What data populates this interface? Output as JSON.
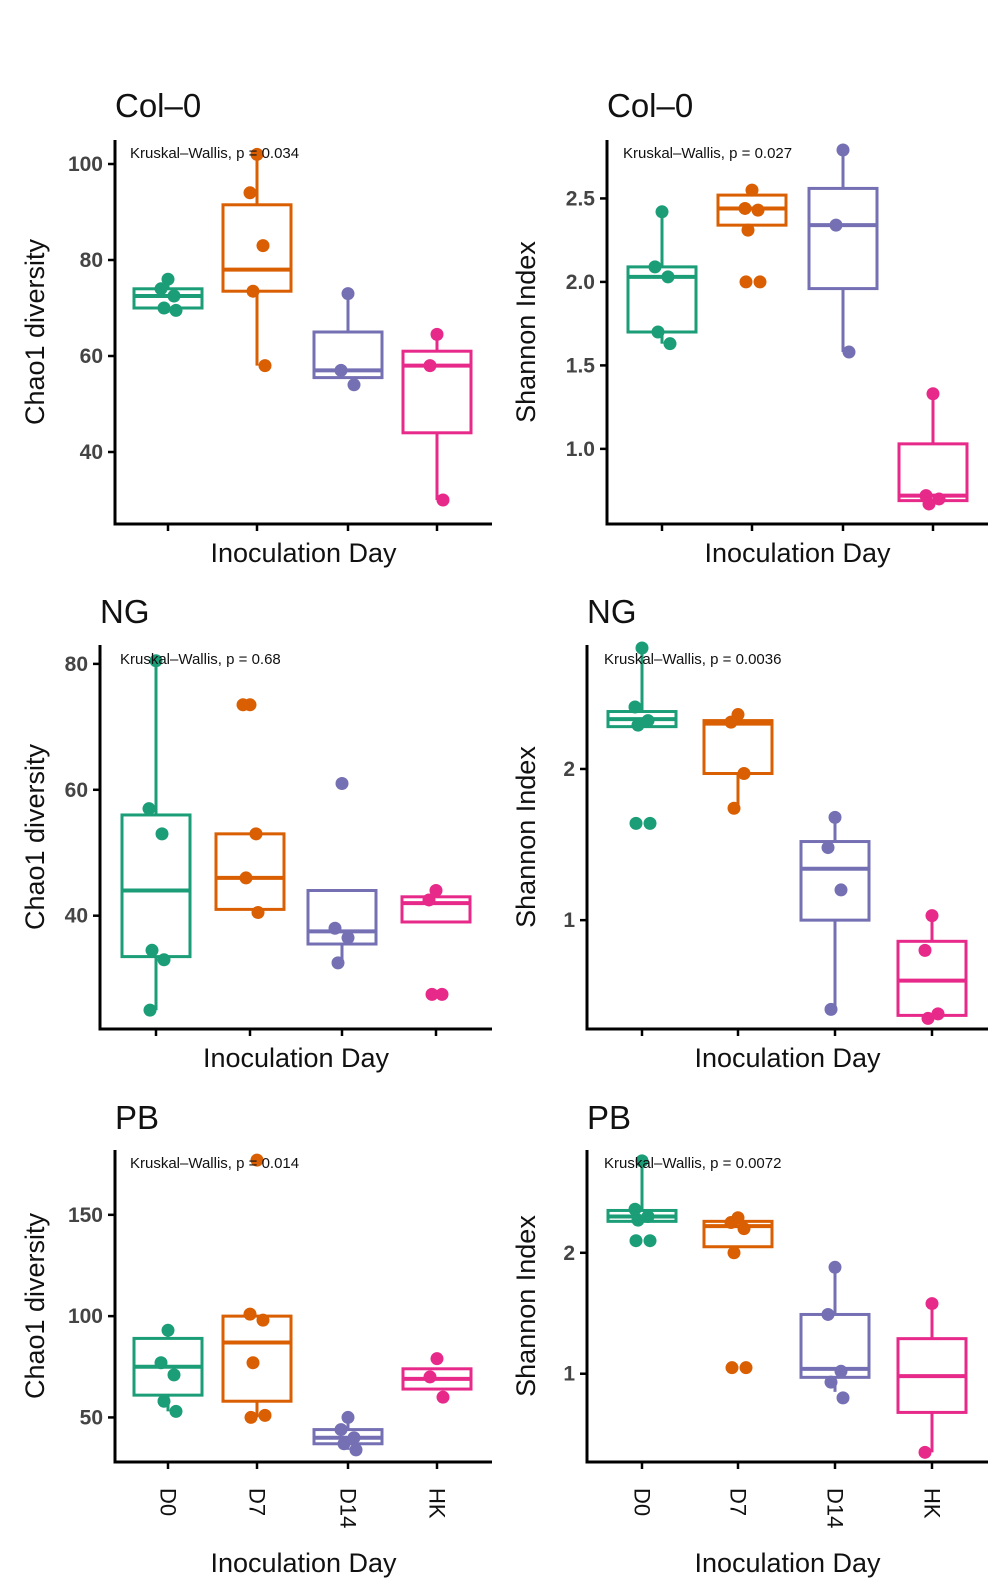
{
  "chart_data": [
    {
      "type": "box",
      "title": "Col–0",
      "xlabel": "Inoculation Day",
      "ylabel": "Chao1 diversity",
      "annotation": "Kruskal–Wallis, p = 0.034",
      "categories": [
        "D0",
        "D7",
        "D14",
        "HK"
      ],
      "show_category_labels": false,
      "ylim": [
        25,
        105
      ],
      "yticks": [
        40,
        60,
        80,
        100
      ],
      "yticklabels": [
        "40",
        "60",
        "80",
        "100"
      ],
      "colors": [
        "#1b9e77",
        "#d95f02",
        "#7570b3",
        "#e7298a"
      ],
      "series": [
        {
          "name": "D0",
          "box": {
            "q1": 70,
            "median": 72.5,
            "q3": 74,
            "min": 69,
            "max": 76
          },
          "points": [
            76,
            74,
            72.5,
            70,
            69.5
          ]
        },
        {
          "name": "D7",
          "box": {
            "q1": 73.5,
            "median": 78,
            "q3": 91.5,
            "min": 58,
            "max": 103
          },
          "points": [
            102,
            94,
            83,
            73.5,
            58
          ]
        },
        {
          "name": "D14",
          "box": {
            "q1": 55.5,
            "median": 57,
            "q3": 65,
            "min": 55.5,
            "max": 73
          },
          "points": [
            73,
            57,
            54
          ]
        },
        {
          "name": "HK",
          "box": {
            "q1": 44,
            "median": 58,
            "q3": 61,
            "min": 30,
            "max": 64.5
          },
          "points": [
            64.5,
            58,
            30
          ]
        }
      ]
    },
    {
      "type": "box",
      "title": "Col–0",
      "xlabel": "Inoculation Day",
      "ylabel": "Shannon Index",
      "annotation": "Kruskal–Wallis, p = 0.027",
      "categories": [
        "D0",
        "D7",
        "D14",
        "HK"
      ],
      "show_category_labels": false,
      "ylim": [
        0.55,
        2.85
      ],
      "yticks": [
        1.0,
        1.5,
        2.0,
        2.5
      ],
      "yticklabels": [
        "1.0",
        "1.5",
        "2.0",
        "2.5"
      ],
      "colors": [
        "#1b9e77",
        "#d95f02",
        "#7570b3",
        "#e7298a"
      ],
      "series": [
        {
          "name": "D0",
          "box": {
            "q1": 1.7,
            "median": 2.03,
            "q3": 2.09,
            "min": 1.63,
            "max": 2.42
          },
          "points": [
            2.42,
            2.09,
            2.03,
            1.7,
            1.63
          ]
        },
        {
          "name": "D7",
          "box": {
            "q1": 2.34,
            "median": 2.44,
            "q3": 2.52,
            "min": 2.34,
            "max": 2.55
          },
          "points": [
            2.55,
            2.44,
            2.43,
            2.31,
            2.0,
            2.0
          ]
        },
        {
          "name": "D14",
          "box": {
            "q1": 1.96,
            "median": 2.34,
            "q3": 2.56,
            "min": 1.58,
            "max": 2.79
          },
          "points": [
            2.79,
            2.34,
            1.58
          ]
        },
        {
          "name": "HK",
          "box": {
            "q1": 0.69,
            "median": 0.72,
            "q3": 1.03,
            "min": 0.69,
            "max": 1.33
          },
          "points": [
            1.33,
            0.72,
            0.7,
            0.67
          ]
        }
      ]
    },
    {
      "type": "box",
      "title": "NG",
      "xlabel": "Inoculation Day",
      "ylabel": "Chao1 diversity",
      "annotation": "Kruskal–Wallis, p = 0.68",
      "categories": [
        "D0",
        "D7",
        "D14",
        "HK"
      ],
      "show_category_labels": false,
      "ylim": [
        22,
        83
      ],
      "yticks": [
        40,
        60,
        80
      ],
      "yticklabels": [
        "40",
        "60",
        "80"
      ],
      "colors": [
        "#1b9e77",
        "#d95f02",
        "#7570b3",
        "#e7298a"
      ],
      "series": [
        {
          "name": "D0",
          "box": {
            "q1": 33.5,
            "median": 44,
            "q3": 56,
            "min": 25,
            "max": 80.5
          },
          "points": [
            80.5,
            57,
            53,
            34.5,
            33,
            25
          ]
        },
        {
          "name": "D7",
          "box": {
            "q1": 41,
            "median": 46,
            "q3": 53,
            "min": 41,
            "max": 53
          },
          "points": [
            73.5,
            73.5,
            53,
            46,
            40.5
          ]
        },
        {
          "name": "D14",
          "box": {
            "q1": 35.5,
            "median": 37.5,
            "q3": 44,
            "min": 32.5,
            "max": 44
          },
          "points": [
            61,
            38,
            36.5,
            32.5
          ]
        },
        {
          "name": "HK",
          "box": {
            "q1": 39,
            "median": 42,
            "q3": 43,
            "min": 39,
            "max": 43
          },
          "points": [
            44,
            42.5,
            27.5,
            27.5
          ]
        }
      ]
    },
    {
      "type": "box",
      "title": "NG",
      "xlabel": "Inoculation Day",
      "ylabel": "Shannon Index",
      "annotation": "Kruskal–Wallis, p = 0.0036",
      "categories": [
        "D0",
        "D7",
        "D14",
        "HK"
      ],
      "show_category_labels": false,
      "ylim": [
        0.28,
        2.82
      ],
      "yticks": [
        1,
        2
      ],
      "yticklabels": [
        "1",
        "2"
      ],
      "colors": [
        "#1b9e77",
        "#d95f02",
        "#7570b3",
        "#e7298a"
      ],
      "series": [
        {
          "name": "D0",
          "box": {
            "q1": 2.28,
            "median": 2.33,
            "q3": 2.38,
            "min": 2.28,
            "max": 2.8
          },
          "points": [
            2.8,
            2.41,
            2.32,
            2.29,
            1.64,
            1.64
          ]
        },
        {
          "name": "D7",
          "box": {
            "q1": 1.97,
            "median": 2.3,
            "q3": 2.32,
            "min": 1.74,
            "max": 2.35
          },
          "points": [
            2.36,
            2.31,
            1.97,
            1.74
          ]
        },
        {
          "name": "D14",
          "box": {
            "q1": 1.0,
            "median": 1.34,
            "q3": 1.52,
            "min": 0.41,
            "max": 1.68
          },
          "points": [
            1.68,
            1.48,
            1.2,
            0.41
          ]
        },
        {
          "name": "HK",
          "box": {
            "q1": 0.37,
            "median": 0.6,
            "q3": 0.86,
            "min": 0.37,
            "max": 1.03
          },
          "points": [
            1.03,
            0.8,
            0.38,
            0.35
          ]
        }
      ]
    },
    {
      "type": "box",
      "title": "PB",
      "xlabel": "Inoculation Day",
      "ylabel": "Chao1 diversity",
      "annotation": "Kruskal–Wallis, p = 0.014",
      "categories": [
        "D0",
        "D7",
        "D14",
        "HK"
      ],
      "show_category_labels": true,
      "ylim": [
        28,
        182
      ],
      "yticks": [
        50,
        100,
        150
      ],
      "yticklabels": [
        "50",
        "100",
        "150"
      ],
      "colors": [
        "#1b9e77",
        "#d95f02",
        "#7570b3",
        "#e7298a"
      ],
      "series": [
        {
          "name": "D0",
          "box": {
            "q1": 61,
            "median": 75,
            "q3": 89,
            "min": 53,
            "max": 93
          },
          "points": [
            93,
            77,
            71,
            58,
            53
          ]
        },
        {
          "name": "D7",
          "box": {
            "q1": 58,
            "median": 87,
            "q3": 100,
            "min": 50,
            "max": 100
          },
          "points": [
            177,
            101,
            98,
            77,
            51,
            50
          ]
        },
        {
          "name": "D14",
          "box": {
            "q1": 37,
            "median": 40,
            "q3": 44,
            "min": 34,
            "max": 50
          },
          "points": [
            50,
            44,
            40,
            37,
            34
          ]
        },
        {
          "name": "HK",
          "box": {
            "q1": 64,
            "median": 69,
            "q3": 74,
            "min": 64,
            "max": 74
          },
          "points": [
            79,
            70,
            60
          ]
        }
      ]
    },
    {
      "type": "box",
      "title": "PB",
      "xlabel": "Inoculation Day",
      "ylabel": "Shannon Index",
      "annotation": "Kruskal–Wallis, p = 0.0072",
      "categories": [
        "D0",
        "D7",
        "D14",
        "HK"
      ],
      "show_category_labels": true,
      "ylim": [
        0.27,
        2.85
      ],
      "yticks": [
        1,
        2
      ],
      "yticklabels": [
        "1",
        "2"
      ],
      "colors": [
        "#1b9e77",
        "#d95f02",
        "#7570b3",
        "#e7298a"
      ],
      "series": [
        {
          "name": "D0",
          "box": {
            "q1": 2.26,
            "median": 2.3,
            "q3": 2.35,
            "min": 2.26,
            "max": 2.76
          },
          "points": [
            2.76,
            2.36,
            2.3,
            2.27,
            2.1,
            2.1
          ]
        },
        {
          "name": "D7",
          "box": {
            "q1": 2.05,
            "median": 2.22,
            "q3": 2.26,
            "min": 2.05,
            "max": 2.29
          },
          "points": [
            2.29,
            2.25,
            2.2,
            2.0,
            1.05,
            1.05
          ]
        },
        {
          "name": "D14",
          "box": {
            "q1": 0.97,
            "median": 1.04,
            "q3": 1.49,
            "min": 0.85,
            "max": 1.88
          },
          "points": [
            1.88,
            1.49,
            1.02,
            0.93,
            0.8
          ]
        },
        {
          "name": "HK",
          "box": {
            "q1": 0.68,
            "median": 0.98,
            "q3": 1.29,
            "min": 0.35,
            "max": 1.58
          },
          "points": [
            1.58,
            0.35
          ]
        }
      ]
    }
  ]
}
